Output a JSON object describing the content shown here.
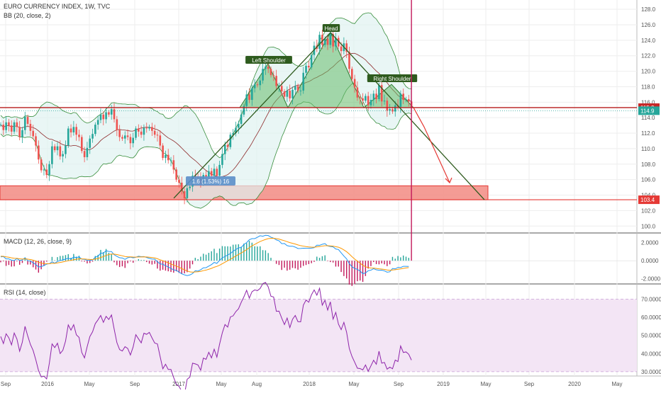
{
  "legend": {
    "main": "EURO CURRENCY INDEX, 1W, TVC",
    "bb": "BB (20, close, 2)",
    "macd": "MACD (12, 26, close, 9)",
    "rsi": "RSI (14, close)"
  },
  "colors": {
    "candle_up": "#26a69a",
    "candle_down": "#ef5350",
    "bb_fill": "#e0f2f1",
    "bb_edge": "#388e3c",
    "bb_basis": "#8d2a2a",
    "pattern_fill": "#66bb6a",
    "pattern_edge": "#2e7d32",
    "neckline": "#b71c1c",
    "support_zone": "#f28b82",
    "target_line": "#e53935",
    "macd_line": "#2196f3",
    "signal_line": "#ff9800",
    "hist_pos": "#26a69a",
    "hist_neg": "#c2185b",
    "rsi_line": "#8e24aa",
    "rsi_band": "#f3e5f5"
  },
  "chart_data": {
    "type": "candlestick",
    "x_ticks": [
      "Sep",
      "2016",
      "May",
      "Sep",
      "2017",
      "May",
      "Aug",
      "2018",
      "May",
      "Sep",
      "2019",
      "May",
      "Sep",
      "2020",
      "May"
    ],
    "price_ticks": [
      "128.0",
      "126.0",
      "124.0",
      "122.0",
      "120.0",
      "118.0",
      "116.0",
      "114.0",
      "112.0",
      "110.0",
      "108.0",
      "106.0",
      "104.0",
      "102.0",
      "100.0"
    ],
    "price_ylim": [
      99.2,
      129.2
    ],
    "macd_ticks": [
      "2.0000",
      "0.0000",
      "-2.0000"
    ],
    "macd_ylim": [
      -2.5,
      3.0
    ],
    "rsi_ticks": [
      "70.0000",
      "60.0000",
      "50.0000",
      "40.0000",
      "30.0000"
    ],
    "rsi_ylim": [
      28.0,
      78.0
    ],
    "rsi_band": [
      30,
      70
    ],
    "last_price_label": "115.3",
    "last_price": 115.3,
    "prev_price_label": "114.9",
    "prev_price": 114.9,
    "target_label": "103.4",
    "target_price": 103.4,
    "support_zone": [
      103.4,
      105.2
    ],
    "annotations": {
      "left_shoulder": "Left Shoulder",
      "head": "Head",
      "right_shoulder": "Right Shoulder",
      "measure": "1.6 (1.53%) 16"
    },
    "close": [
      113.1,
      112.4,
      113.4,
      113.0,
      112.2,
      113.4,
      112.8,
      111.5,
      112.4,
      114.1,
      113.2,
      112.3,
      111.6,
      110.4,
      108.6,
      107.2,
      107.3,
      106.6,
      108.0,
      110.3,
      109.8,
      110.3,
      109.0,
      109.3,
      110.4,
      112.6,
      112.1,
      112.8,
      111.8,
      111.5,
      109.7,
      108.9,
      110.1,
      111.3,
      111.9,
      113.1,
      113.7,
      114.4,
      113.8,
      114.7,
      114.4,
      115.1,
      113.8,
      112.4,
      111.5,
      111.3,
      111.7,
      111.5,
      110.7,
      111.4,
      112.6,
      112.2,
      111.8,
      112.7,
      112.6,
      112.8,
      112.3,
      111.8,
      111.7,
      110.4,
      108.8,
      109.2,
      108.5,
      108.5,
      107.3,
      106.0,
      105.6,
      104.5,
      103.6,
      104.9,
      105.1,
      106.5,
      106.4,
      106.3,
      105.5,
      106.6,
      106.4,
      107.1,
      106.5,
      107.4,
      106.5,
      107.9,
      109.3,
      110.5,
      110.2,
      111.8,
      112.0,
      112.7,
      113.2,
      114.4,
      115.5,
      117.0,
      116.3,
      117.8,
      118.3,
      118.2,
      118.8,
      120.3,
      120.6,
      120.3,
      119.5,
      119.4,
      118.1,
      118.1,
      117.4,
      116.7,
      117.5,
      116.5,
      117.6,
      118.1,
      117.5,
      117.5,
      119.8,
      120.7,
      120.5,
      122.1,
      123.3,
      122.9,
      124.7,
      123.4,
      124.2,
      123.4,
      124.8,
      123.2,
      124.3,
      123.2,
      122.6,
      123.6,
      122.5,
      120.3,
      119.0,
      117.9,
      116.6,
      116.5,
      116.2,
      116.8,
      115.6,
      116.3,
      117.1,
      116.4,
      118.2,
      116.1,
      116.2,
      114.9,
      115.1,
      114.8,
      115.6,
      115.4,
      117.1,
      116.3,
      116.4,
      116.1,
      115.3
    ],
    "macd": [
      0.43,
      0.46,
      0.2,
      0.2,
      0.06,
      0.02,
      0.23,
      0.03,
      0.08,
      0.33,
      0.0,
      -0.04,
      -0.23,
      -0.42,
      -0.7,
      -0.64,
      -0.55,
      -0.37,
      -0.33,
      -0.12,
      -0.27,
      -0.08,
      0.02,
      0.09,
      0.18,
      0.29,
      0.17,
      0.41,
      0.34,
      0.43,
      0.17,
      0.15,
      0.04,
      0.04,
      0.09,
      0.39,
      0.5,
      0.84,
      0.84,
      1.11,
      1.03,
      1.02,
      0.66,
      0.48,
      0.33,
      0.3,
      0.15,
      0.33,
      0.4,
      0.32,
      0.39,
      0.49,
      0.45,
      0.46,
      0.36,
      0.26,
      0.18,
      0.17,
      -0.13,
      -0.34,
      -0.4,
      -0.55,
      -0.7,
      -0.86,
      -1.02,
      -1.07,
      -1.27,
      -1.45,
      -1.57,
      -1.65,
      -1.58,
      -1.43,
      -1.11,
      -1.15,
      -1.0,
      -0.79,
      -0.77,
      -0.6,
      -0.43,
      -0.19,
      -0.29,
      0.04,
      0.32,
      0.47,
      0.64,
      0.79,
      1.05,
      1.24,
      1.43,
      1.47,
      1.8,
      2.01,
      2.33,
      2.45,
      2.45,
      2.6,
      2.77,
      2.72,
      2.82,
      2.79,
      2.61,
      2.5,
      2.31,
      2.21,
      1.89,
      1.91,
      1.67,
      1.61,
      1.61,
      1.51,
      1.35,
      1.36,
      1.39,
      1.38,
      1.38,
      1.4,
      1.45,
      1.72,
      1.71,
      1.82,
      1.9,
      1.64,
      1.58,
      1.54,
      1.3,
      1.24,
      0.87,
      0.52,
      0.21,
      -0.32,
      -0.67,
      -0.86,
      -0.96,
      -1.15,
      -1.44,
      -1.35,
      -1.11,
      -1.05,
      -0.88,
      -1.01,
      -1.06,
      -1.05,
      -1.13,
      -1.27,
      -1.23,
      -0.86,
      -0.91,
      -0.74,
      -0.76,
      -0.62,
      -0.62,
      -0.63
    ],
    "signal": [
      0.5,
      0.49,
      0.43,
      0.39,
      0.32,
      0.27,
      0.26,
      0.21,
      0.18,
      0.21,
      0.17,
      0.13,
      0.06,
      -0.03,
      -0.17,
      -0.26,
      -0.32,
      -0.33,
      -0.33,
      -0.29,
      -0.29,
      -0.24,
      -0.19,
      -0.13,
      -0.07,
      0.0,
      0.04,
      0.11,
      0.16,
      0.21,
      0.2,
      0.19,
      0.16,
      0.14,
      0.13,
      0.18,
      0.24,
      0.36,
      0.46,
      0.59,
      0.68,
      0.74,
      0.73,
      0.68,
      0.61,
      0.55,
      0.47,
      0.44,
      0.43,
      0.41,
      0.4,
      0.42,
      0.42,
      0.43,
      0.42,
      0.39,
      0.35,
      0.31,
      0.22,
      0.1,
      0.0,
      -0.11,
      -0.23,
      -0.36,
      -0.49,
      -0.6,
      -0.73,
      -0.87,
      -1.01,
      -1.14,
      -1.23,
      -1.27,
      -1.24,
      -1.22,
      -1.18,
      -1.1,
      -1.04,
      -0.95,
      -0.85,
      -0.72,
      -0.63,
      -0.5,
      -0.33,
      -0.17,
      0.0,
      0.16,
      0.34,
      0.52,
      0.7,
      0.85,
      1.04,
      1.23,
      1.45,
      1.65,
      1.81,
      1.97,
      2.13,
      2.25,
      2.36,
      2.45,
      2.48,
      2.49,
      2.45,
      2.4,
      2.3,
      2.22,
      2.11,
      2.01,
      1.93,
      1.85,
      1.75,
      1.67,
      1.62,
      1.57,
      1.53,
      1.51,
      1.5,
      1.54,
      1.58,
      1.62,
      1.66,
      1.66,
      1.64,
      1.62,
      1.56,
      1.5,
      1.37,
      1.2,
      1.0,
      0.74,
      0.45,
      0.18,
      -0.05,
      -0.27,
      -0.5,
      -0.67,
      -0.76,
      -0.81,
      -0.82,
      -0.86,
      -0.9,
      -0.93,
      -0.97,
      -1.03,
      -1.07,
      -1.03,
      -1.0,
      -0.95,
      -0.91,
      -0.85,
      -0.8,
      -0.76
    ],
    "rsi": [
      49.4,
      45.5,
      50.9,
      48.7,
      44.8,
      51.3,
      48.0,
      41.3,
      46.3,
      55.0,
      49.7,
      45.0,
      41.7,
      36.5,
      30.6,
      27.1,
      27.5,
      26.0,
      34.7,
      45.3,
      43.3,
      45.7,
      40.0,
      41.8,
      46.9,
      55.8,
      52.9,
      55.9,
      50.3,
      48.9,
      40.6,
      37.6,
      43.8,
      49.4,
      52.0,
      56.5,
      58.6,
      61.0,
      57.2,
      60.5,
      58.8,
      61.3,
      53.4,
      46.0,
      42.2,
      41.4,
      43.8,
      42.8,
      39.2,
      43.6,
      50.4,
      48.1,
      45.9,
      51.2,
      50.6,
      51.7,
      48.6,
      45.8,
      45.3,
      38.3,
      31.6,
      34.1,
      31.2,
      31.2,
      26.8,
      23.0,
      21.9,
      19.1,
      17.2,
      25.8,
      27.0,
      34.7,
      34.3,
      33.7,
      30.8,
      37.5,
      36.8,
      40.7,
      37.6,
      42.4,
      38.0,
      45.2,
      51.4,
      56.0,
      54.6,
      60.2,
      60.8,
      63.1,
      64.7,
      68.2,
      71.3,
      74.9,
      70.6,
      74.1,
      75.1,
      74.7,
      75.9,
      78.6,
      79.2,
      76.8,
      71.6,
      71.2,
      63.3,
      63.4,
      59.5,
      56.0,
      59.6,
      54.3,
      58.9,
      61.0,
      57.6,
      57.5,
      66.7,
      69.5,
      68.3,
      72.4,
      75.1,
      72.2,
      76.0,
      66.7,
      69.4,
      64.0,
      68.5,
      59.0,
      62.7,
      56.2,
      53.2,
      57.2,
      51.8,
      42.8,
      38.4,
      35.2,
      31.9,
      31.7,
      31.0,
      33.7,
      30.2,
      33.2,
      36.3,
      34.1,
      41.3,
      34.7,
      35.1,
      31.4,
      32.5,
      31.6,
      36.4,
      35.6,
      44.2,
      40.6,
      40.9,
      39.6,
      36.4
    ]
  }
}
